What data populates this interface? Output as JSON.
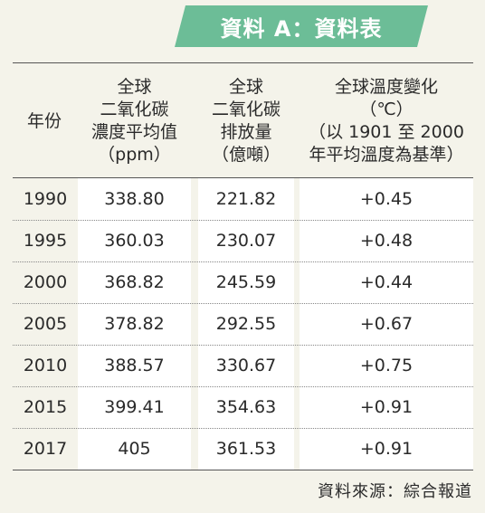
{
  "title": "資料 A：資料表",
  "headers": {
    "year": "年份",
    "co2_concentration": [
      "全球",
      "二氧化碳",
      "濃度平均值",
      "（ppm）"
    ],
    "co2_emission": [
      "全球",
      "二氧化碳",
      "排放量",
      "（億噸）"
    ],
    "temp_change": [
      "全球溫度變化",
      "（℃）",
      "（以 1901 至 2000",
      "年平均溫度為基準）"
    ]
  },
  "rows": [
    {
      "year": "1990",
      "concentration": "338.80",
      "emission": "221.82",
      "temp": "+0.45"
    },
    {
      "year": "1995",
      "concentration": "360.03",
      "emission": "230.07",
      "temp": "+0.48"
    },
    {
      "year": "2000",
      "concentration": "368.82",
      "emission": "245.59",
      "temp": "+0.44"
    },
    {
      "year": "2005",
      "concentration": "378.82",
      "emission": "292.55",
      "temp": "+0.67"
    },
    {
      "year": "2010",
      "concentration": "388.57",
      "emission": "330.67",
      "temp": "+0.75"
    },
    {
      "year": "2015",
      "concentration": "399.41",
      "emission": "354.63",
      "temp": "+0.91"
    },
    {
      "year": "2017",
      "concentration": "405",
      "emission": "361.53",
      "temp": "+0.91"
    }
  ],
  "source": "資料來源：綜合報道",
  "colors": {
    "banner": "#6cbd97",
    "background": "#f4f3ea",
    "cell_background": "#ffffff"
  }
}
